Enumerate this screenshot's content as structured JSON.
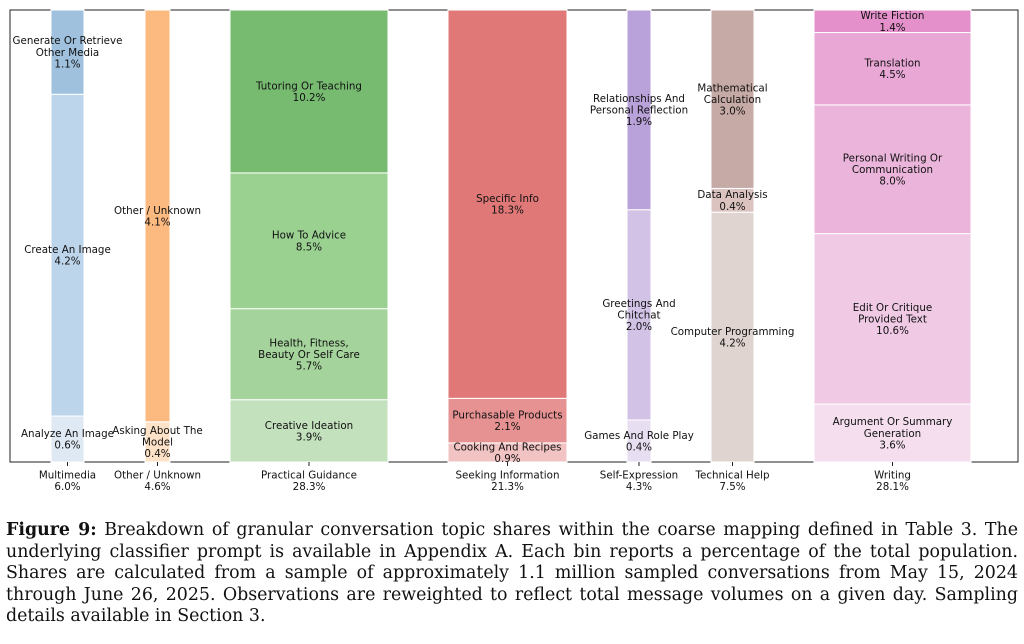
{
  "chart_data": {
    "type": "bar",
    "subtype": "stacked-marimekko",
    "title": "",
    "xlabel": "",
    "ylabel": "",
    "ylim": [
      0,
      100
    ],
    "grid": false,
    "groups": [
      {
        "name": "Multimedia",
        "total": "6.0%",
        "color_base": "#1f77b4",
        "segments": [
          {
            "label": [
              "Analyze An Image"
            ],
            "pct": "0.6%",
            "value": 0.6,
            "color": "#dfe9f3"
          },
          {
            "label": [
              "Create An Image"
            ],
            "pct": "4.2%",
            "value": 4.2,
            "color": "#bdd5ea"
          },
          {
            "label": [
              "Generate Or Retrieve",
              "Other Media"
            ],
            "pct": "1.1%",
            "value": 1.1,
            "color": "#9fc1de"
          }
        ]
      },
      {
        "name": "Other / Unknown",
        "total": "4.6%",
        "color_base": "#ff7f0e",
        "segments": [
          {
            "label": [
              "Asking About The",
              "Model"
            ],
            "pct": "0.4%",
            "value": 0.4,
            "color": "#fde2c7"
          },
          {
            "label": [
              "Other / Unknown"
            ],
            "pct": "4.1%",
            "value": 4.1,
            "color": "#fdba80"
          }
        ]
      },
      {
        "name": "Practical Guidance",
        "total": "28.3%",
        "color_base": "#2ca02c",
        "segments": [
          {
            "label": [
              "Creative Ideation"
            ],
            "pct": "3.9%",
            "value": 3.9,
            "color": "#c3e1bd"
          },
          {
            "label": [
              "Health, Fitness,",
              "Beauty Or Self Care"
            ],
            "pct": "5.7%",
            "value": 5.7,
            "color": "#a4d39b"
          },
          {
            "label": [
              "How To Advice"
            ],
            "pct": "8.5%",
            "value": 8.5,
            "color": "#9ad191"
          },
          {
            "label": [
              "Tutoring Or Teaching"
            ],
            "pct": "10.2%",
            "value": 10.2,
            "color": "#77bb71"
          }
        ]
      },
      {
        "name": "Seeking Information",
        "total": "21.3%",
        "color_base": "#d62728",
        "segments": [
          {
            "label": [
              "Cooking And Recipes"
            ],
            "pct": "0.9%",
            "value": 0.9,
            "color": "#f1c3c3"
          },
          {
            "label": [
              "Purchasable Products"
            ],
            "pct": "2.1%",
            "value": 2.1,
            "color": "#e79292"
          },
          {
            "label": [
              "Specific Info"
            ],
            "pct": "18.3%",
            "value": 18.3,
            "color": "#e17878"
          }
        ]
      },
      {
        "name": "Self-Expression",
        "total": "4.3%",
        "color_base": "#9467bd",
        "segments": [
          {
            "label": [
              "Games And Role Play"
            ],
            "pct": "0.4%",
            "value": 0.4,
            "color": "#e7def1"
          },
          {
            "label": [
              "Greetings And",
              "Chitchat"
            ],
            "pct": "2.0%",
            "value": 2.0,
            "color": "#d2c3e6"
          },
          {
            "label": [
              "Relationships And",
              "Personal Reflection"
            ],
            "pct": "1.9%",
            "value": 1.9,
            "color": "#b9a1d9"
          }
        ]
      },
      {
        "name": "Technical Help",
        "total": "7.5%",
        "color_base": "#8c564b",
        "segments": [
          {
            "label": [
              "Computer Programming"
            ],
            "pct": "4.2%",
            "value": 4.2,
            "color": "#e0d4d1"
          },
          {
            "label": [
              "Data Analysis"
            ],
            "pct": "0.4%",
            "value": 0.4,
            "color": "#dbc4c0"
          },
          {
            "label": [
              "Mathematical",
              "Calculation"
            ],
            "pct": "3.0%",
            "value": 3.0,
            "color": "#c6aaa5"
          }
        ]
      },
      {
        "name": "Writing",
        "total": "28.1%",
        "color_base": "#e377c2",
        "segments": [
          {
            "label": [
              "Argument Or Summary",
              "Generation"
            ],
            "pct": "3.6%",
            "value": 3.6,
            "color": "#f5dfef"
          },
          {
            "label": [
              "Edit Or Critique",
              "Provided Text"
            ],
            "pct": "10.6%",
            "value": 10.6,
            "color": "#f0cae5"
          },
          {
            "label": [
              "Personal Writing Or",
              "Communication"
            ],
            "pct": "8.0%",
            "value": 8.0,
            "color": "#ebb5db"
          },
          {
            "label": [
              "Translation"
            ],
            "pct": "4.5%",
            "value": 4.5,
            "color": "#e9a7d6"
          },
          {
            "label": [
              "Write Fiction"
            ],
            "pct": "1.4%",
            "value": 1.4,
            "color": "#e490cb"
          }
        ]
      }
    ]
  },
  "caption": {
    "label": "Figure 9:",
    "text": "Breakdown of granular conversation topic shares within the coarse mapping defined in Table 3. The underlying classifier prompt is available in Appendix A. Each bin reports a percentage of the total population. Shares are calculated from a sample of approximately 1.1 million sampled conversations from May 15, 2024 through June 26, 2025. Observations are reweighted to reflect total message volumes on a given day. Sampling details available in Section 3."
  }
}
